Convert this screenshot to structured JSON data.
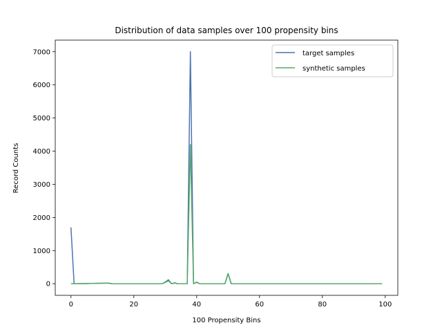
{
  "chart_data": {
    "type": "line",
    "title": "Distribution of data samples over 100 propensity bins",
    "xlabel": "100 Propensity Bins",
    "ylabel": "Record Counts",
    "xlim": [
      -5,
      104
    ],
    "ylim": [
      -350,
      7350
    ],
    "xticks": [
      0,
      20,
      40,
      60,
      80,
      100
    ],
    "yticks": [
      0,
      1000,
      2000,
      3000,
      4000,
      5000,
      6000,
      7000
    ],
    "grid": false,
    "legend_position": "top-right",
    "series": [
      {
        "name": "target samples",
        "color": "#4c72b0",
        "points": [
          [
            0,
            1700
          ],
          [
            1,
            0
          ],
          [
            12,
            20
          ],
          [
            13,
            0
          ],
          [
            29,
            0
          ],
          [
            30,
            50
          ],
          [
            31,
            120
          ],
          [
            32,
            0
          ],
          [
            33,
            30
          ],
          [
            34,
            0
          ],
          [
            37,
            0
          ],
          [
            38,
            7000
          ],
          [
            39,
            0
          ],
          [
            40,
            50
          ],
          [
            41,
            0
          ],
          [
            49,
            0
          ],
          [
            50,
            300
          ],
          [
            51,
            0
          ],
          [
            99,
            0
          ]
        ]
      },
      {
        "name": "synthetic samples",
        "color": "#55a868",
        "points": [
          [
            0,
            0
          ],
          [
            1,
            0
          ],
          [
            12,
            20
          ],
          [
            13,
            0
          ],
          [
            29,
            0
          ],
          [
            30,
            40
          ],
          [
            31,
            90
          ],
          [
            32,
            0
          ],
          [
            33,
            20
          ],
          [
            34,
            0
          ],
          [
            37,
            0
          ],
          [
            38,
            4200
          ],
          [
            39,
            0
          ],
          [
            40,
            40
          ],
          [
            41,
            0
          ],
          [
            49,
            0
          ],
          [
            50,
            310
          ],
          [
            51,
            0
          ],
          [
            99,
            0
          ]
        ]
      }
    ]
  }
}
